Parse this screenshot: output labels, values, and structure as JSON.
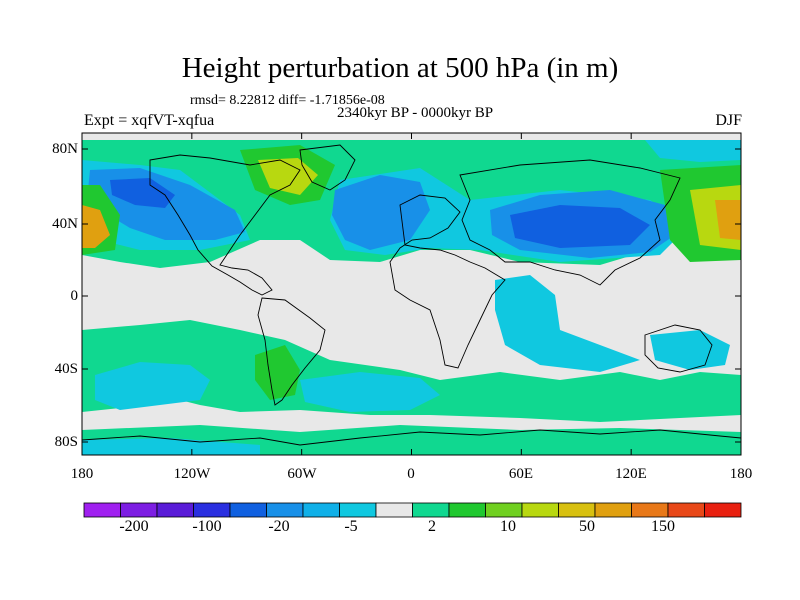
{
  "header": {
    "title": "Height perturbation at 500 hPa (in m)",
    "stats": "rmsd= 8.22812 diff= -1.71856e-08",
    "subtitle": "2340kyr BP - 0000kyr BP",
    "left": "Expt = xqfVT-xqfua",
    "right": "DJF"
  },
  "axes": {
    "lat_ticks": [
      "80N",
      "40N",
      "0",
      "40S",
      "80S"
    ],
    "lon_ticks": [
      "180",
      "120W",
      "60W",
      "0",
      "60E",
      "120E",
      "180"
    ]
  },
  "colorbar": {
    "colors": [
      "#a020f0",
      "#7d1ee3",
      "#5a1cd8",
      "#2a2fe0",
      "#1060e0",
      "#1890e8",
      "#10b0e8",
      "#10c8e0",
      "#e8e8e8",
      "#10d890",
      "#20c830",
      "#70d020",
      "#b8d810",
      "#d8c010",
      "#e0a010",
      "#e87818",
      "#e84818",
      "#e82010"
    ],
    "labels": [
      "-200",
      "-100",
      "-20",
      "-5",
      "2",
      "10",
      "50",
      "150"
    ]
  },
  "field_colors": {
    "blue_dark": "#1060e0",
    "blue_mid": "#1890e8",
    "cyan": "#10c8e0",
    "neutral": "#e8e8e8",
    "green": "#10d890",
    "green_bright": "#20c830",
    "yellowgreen": "#b8d810",
    "orange": "#e0a010"
  }
}
